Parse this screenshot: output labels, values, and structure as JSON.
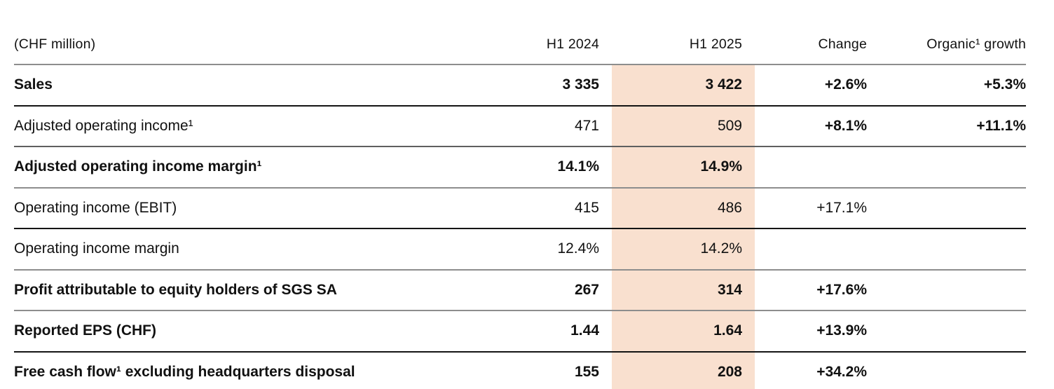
{
  "table": {
    "unit_label": "(CHF million)",
    "column_headers": [
      "H1 2024",
      "H1 2025",
      "Change",
      "Organic¹ growth"
    ],
    "highlighted_column": "H1 2025",
    "rows": [
      {
        "label": "Sales",
        "h1_2024": "3 335",
        "h1_2025": "3 422",
        "change": "+2.6%",
        "organic": "+5.3%"
      },
      {
        "label": "Adjusted operating income¹",
        "h1_2024": "471",
        "h1_2025": "509",
        "change": "+8.1%",
        "organic": "+11.1%"
      },
      {
        "label": "Adjusted operating income margin¹",
        "h1_2024": "14.1%",
        "h1_2025": "14.9%",
        "change": "",
        "organic": ""
      },
      {
        "label": "Operating income (EBIT)",
        "h1_2024": "415",
        "h1_2025": "486",
        "change": "+17.1%",
        "organic": ""
      },
      {
        "label": "Operating income margin",
        "h1_2024": "12.4%",
        "h1_2025": "14.2%",
        "change": "",
        "organic": ""
      },
      {
        "label": "Profit attributable to equity holders of SGS SA",
        "h1_2024": "267",
        "h1_2025": "314",
        "change": "+17.6%",
        "organic": ""
      },
      {
        "label": "Reported EPS (CHF)",
        "h1_2024": "1.44",
        "h1_2025": "1.64",
        "change": "+13.9%",
        "organic": ""
      },
      {
        "label": "Free cash flow¹ excluding headquarters disposal",
        "h1_2024": "155",
        "h1_2025": "208",
        "change": "+34.2%",
        "organic": ""
      }
    ],
    "colors": {
      "highlight_column_bg": "#f9e0cf",
      "text": "#111111",
      "rule_light": "#8d8d8d",
      "rule_dark": "#141414"
    }
  }
}
